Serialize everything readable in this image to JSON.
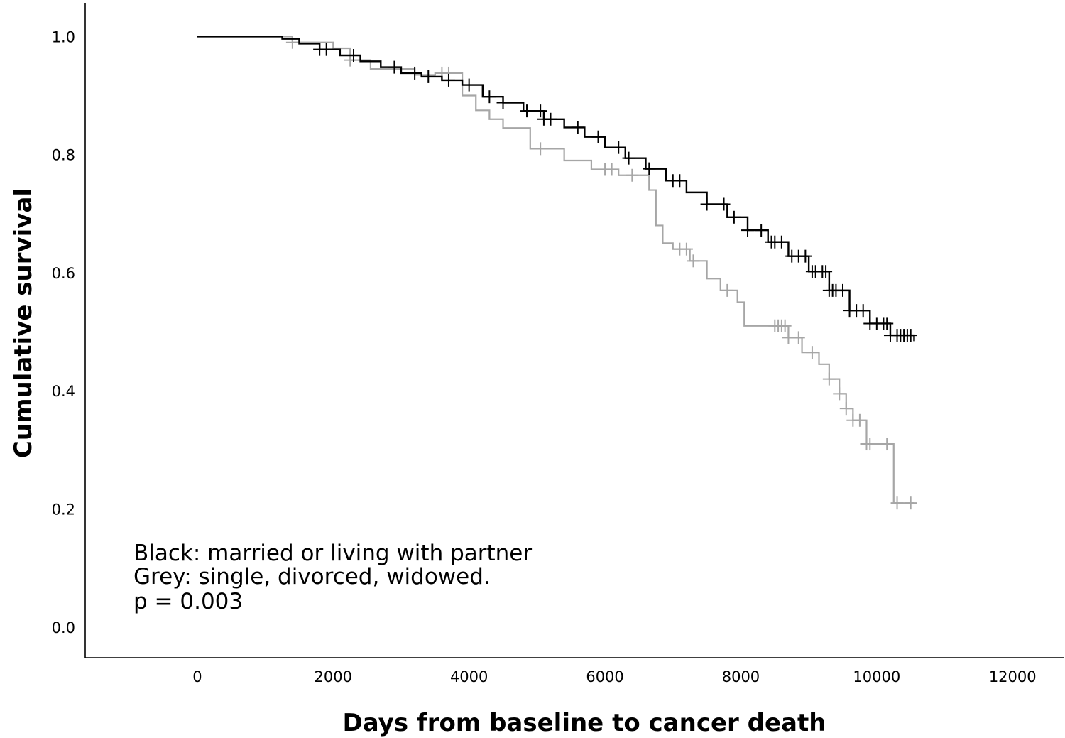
{
  "chart_data": {
    "type": "line",
    "title": "",
    "xlabel": "Days from baseline to cancer death",
    "ylabel": "Cumulative survival",
    "xlim": [
      -1650,
      12750
    ],
    "ylim": [
      -0.052,
      1.057
    ],
    "x_ticks": [
      0,
      2000,
      4000,
      6000,
      8000,
      10000,
      12000
    ],
    "x_tick_labels": [
      "0",
      "2000",
      "4000",
      "6000",
      "8000",
      "10000",
      "12000"
    ],
    "y_ticks": [
      0.0,
      0.2,
      0.4,
      0.6,
      0.8,
      1.0
    ],
    "y_tick_labels": [
      "0.0",
      "0.2",
      "0.4",
      "0.6",
      "0.8",
      "1.0"
    ],
    "grid": false,
    "annotations": [
      "Black: married or living with partner",
      "Grey: single, divorced, widowed.",
      "p = 0.003"
    ],
    "series": [
      {
        "color": "#000000",
        "style": "step",
        "x": [
          0,
          1250,
          1500,
          1800,
          2100,
          2400,
          2700,
          3000,
          3300,
          3600,
          3900,
          4200,
          4500,
          4800,
          5100,
          5400,
          5700,
          6000,
          6300,
          6600,
          6900,
          7200,
          7500,
          7800,
          8100,
          8400,
          8700,
          9000,
          9300,
          9600,
          9900,
          10200,
          10550
        ],
        "y": [
          1.0,
          0.996,
          0.988,
          0.978,
          0.968,
          0.958,
          0.948,
          0.938,
          0.932,
          0.926,
          0.918,
          0.898,
          0.888,
          0.874,
          0.86,
          0.846,
          0.83,
          0.812,
          0.794,
          0.776,
          0.756,
          0.736,
          0.716,
          0.694,
          0.672,
          0.652,
          0.628,
          0.602,
          0.57,
          0.536,
          0.514,
          0.494,
          0.484
        ],
        "censored_x": [
          1800,
          1900,
          2300,
          2900,
          3200,
          3400,
          3700,
          4000,
          4300,
          4500,
          4850,
          5050,
          5100,
          5200,
          5600,
          5900,
          6200,
          6350,
          6650,
          7000,
          7100,
          7500,
          7750,
          7900,
          8100,
          8300,
          8450,
          8500,
          8600,
          8750,
          8850,
          8950,
          9050,
          9100,
          9200,
          9250,
          9300,
          9350,
          9400,
          9500,
          9600,
          9700,
          9800,
          9900,
          10000,
          10100,
          10150,
          10200,
          10300,
          10350,
          10400,
          10450,
          10500
        ]
      },
      {
        "color": "#a6a6a6",
        "style": "step",
        "x": [
          0,
          1400,
          2000,
          2250,
          2550,
          3200,
          3500,
          3900,
          4100,
          4300,
          4500,
          4900,
          5400,
          5800,
          6200,
          6650,
          6750,
          6850,
          7000,
          7250,
          7500,
          7700,
          7950,
          8050,
          8700,
          8900,
          9150,
          9300,
          9450,
          9550,
          9650,
          9850,
          10250,
          10550
        ],
        "y": [
          1.0,
          0.99,
          0.98,
          0.96,
          0.945,
          0.935,
          0.938,
          0.9,
          0.875,
          0.86,
          0.845,
          0.81,
          0.79,
          0.775,
          0.765,
          0.74,
          0.68,
          0.65,
          0.64,
          0.62,
          0.59,
          0.57,
          0.55,
          0.51,
          0.49,
          0.465,
          0.445,
          0.42,
          0.395,
          0.37,
          0.35,
          0.31,
          0.21,
          0.21
        ],
        "censored_x": [
          1400,
          2250,
          3600,
          3700,
          5050,
          6000,
          6100,
          6400,
          7100,
          7200,
          7300,
          7800,
          8500,
          8550,
          8600,
          8650,
          8700,
          8850,
          9050,
          9300,
          9450,
          9550,
          9650,
          9750,
          9850,
          9900,
          10150,
          10300,
          10500
        ]
      }
    ]
  }
}
